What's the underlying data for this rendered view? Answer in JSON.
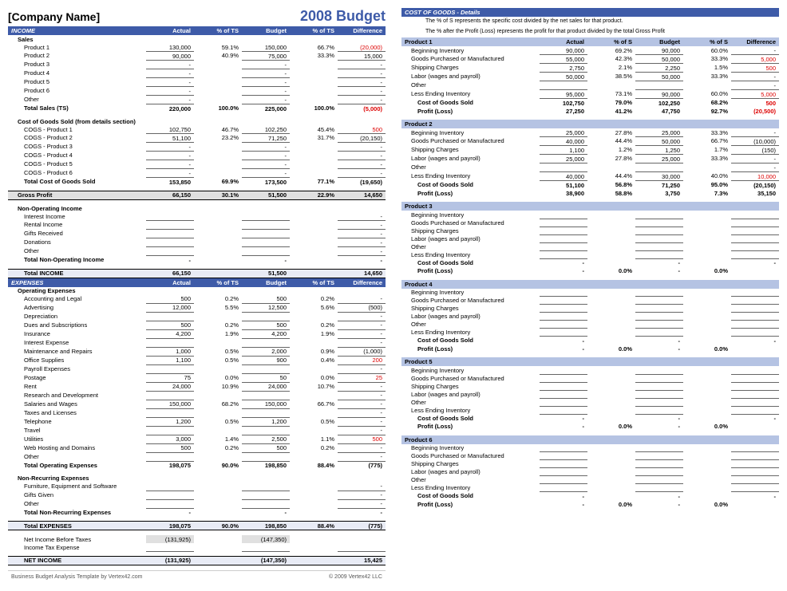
{
  "header": {
    "company": "[Company Name]",
    "title": "2008 Budget"
  },
  "columns": {
    "actual": "Actual",
    "pct": "% of TS",
    "budget": "Budget",
    "pct2": "% of TS",
    "diff": "Difference"
  },
  "income": {
    "title": "INCOME",
    "sales_label": "Sales",
    "sales": [
      {
        "lbl": "Product 1",
        "a": "130,000",
        "ap": "59.1%",
        "b": "150,000",
        "bp": "66.7%",
        "d": "(20,000)",
        "neg": true
      },
      {
        "lbl": "Product 2",
        "a": "90,000",
        "ap": "40.9%",
        "b": "75,000",
        "bp": "33.3%",
        "d": "15,000"
      },
      {
        "lbl": "Product 3",
        "a": "-",
        "ap": "",
        "b": "-",
        "bp": "",
        "d": "-"
      },
      {
        "lbl": "Product 4",
        "a": "-",
        "ap": "",
        "b": "-",
        "bp": "",
        "d": "-"
      },
      {
        "lbl": "Product 5",
        "a": "-",
        "ap": "",
        "b": "-",
        "bp": "",
        "d": "-"
      },
      {
        "lbl": "Product 6",
        "a": "-",
        "ap": "",
        "b": "-",
        "bp": "",
        "d": "-"
      },
      {
        "lbl": "Other",
        "a": "-",
        "ap": "",
        "b": "-",
        "bp": "",
        "d": "-"
      }
    ],
    "total_sales": {
      "lbl": "Total Sales (TS)",
      "a": "220,000",
      "ap": "100.0%",
      "b": "225,000",
      "bp": "100.0%",
      "d": "(5,000)",
      "neg": true
    },
    "cogs_label": "Cost of Goods Sold (from details section)",
    "cogs": [
      {
        "lbl": "COGS - Product 1",
        "a": "102,750",
        "ap": "46.7%",
        "b": "102,250",
        "bp": "45.4%",
        "d": "500",
        "neg": true
      },
      {
        "lbl": "COGS - Product 2",
        "a": "51,100",
        "ap": "23.2%",
        "b": "71,250",
        "bp": "31.7%",
        "d": "(20,150)"
      },
      {
        "lbl": "COGS - Product 3",
        "a": "-",
        "ap": "",
        "b": "-",
        "bp": "",
        "d": "-"
      },
      {
        "lbl": "COGS - Product 4",
        "a": "-",
        "ap": "",
        "b": "-",
        "bp": "",
        "d": "-"
      },
      {
        "lbl": "COGS - Product 5",
        "a": "-",
        "ap": "",
        "b": "-",
        "bp": "",
        "d": "-"
      },
      {
        "lbl": "COGS - Product 6",
        "a": "-",
        "ap": "",
        "b": "-",
        "bp": "",
        "d": "-"
      }
    ],
    "total_cogs": {
      "lbl": "Total Cost of Goods Sold",
      "a": "153,850",
      "ap": "69.9%",
      "b": "173,500",
      "bp": "77.1%",
      "d": "(19,650)"
    },
    "gross": {
      "lbl": "Gross Profit",
      "a": "66,150",
      "ap": "30.1%",
      "b": "51,500",
      "bp": "22.9%",
      "d": "14,650"
    },
    "nonop_label": "Non-Operating Income",
    "nonop": [
      {
        "lbl": "Interest Income",
        "a": "",
        "ap": "",
        "b": "",
        "bp": "",
        "d": "-"
      },
      {
        "lbl": "Rental Income",
        "a": "",
        "ap": "",
        "b": "",
        "bp": "",
        "d": "-"
      },
      {
        "lbl": "Gifts Received",
        "a": "",
        "ap": "",
        "b": "",
        "bp": "",
        "d": "-"
      },
      {
        "lbl": "Donations",
        "a": "",
        "ap": "",
        "b": "",
        "bp": "",
        "d": "-"
      },
      {
        "lbl": "Other",
        "a": "",
        "ap": "",
        "b": "",
        "bp": "",
        "d": "-"
      }
    ],
    "total_nonop": {
      "lbl": "Total Non-Operating Income",
      "a": "-",
      "ap": "",
      "b": "-",
      "bp": "",
      "d": "-"
    },
    "total": {
      "lbl": "Total INCOME",
      "a": "66,150",
      "ap": "",
      "b": "51,500",
      "bp": "",
      "d": "14,650"
    }
  },
  "expenses": {
    "title": "EXPENSES",
    "op_label": "Operating Expenses",
    "ops": [
      {
        "lbl": "Accounting and Legal",
        "a": "500",
        "ap": "0.2%",
        "b": "500",
        "bp": "0.2%",
        "d": "-"
      },
      {
        "lbl": "Advertising",
        "a": "12,000",
        "ap": "5.5%",
        "b": "12,500",
        "bp": "5.6%",
        "d": "(500)"
      },
      {
        "lbl": "Depreciation",
        "a": "",
        "ap": "",
        "b": "",
        "bp": "",
        "d": "-"
      },
      {
        "lbl": "Dues and Subscriptions",
        "a": "500",
        "ap": "0.2%",
        "b": "500",
        "bp": "0.2%",
        "d": "-"
      },
      {
        "lbl": "Insurance",
        "a": "4,200",
        "ap": "1.9%",
        "b": "4,200",
        "bp": "1.9%",
        "d": "-"
      },
      {
        "lbl": "Interest Expense",
        "a": "",
        "ap": "",
        "b": "",
        "bp": "",
        "d": "-"
      },
      {
        "lbl": "Maintenance and Repairs",
        "a": "1,000",
        "ap": "0.5%",
        "b": "2,000",
        "bp": "0.9%",
        "d": "(1,000)"
      },
      {
        "lbl": "Office Supplies",
        "a": "1,100",
        "ap": "0.5%",
        "b": "900",
        "bp": "0.4%",
        "d": "200",
        "neg": true
      },
      {
        "lbl": "Payroll Expenses",
        "a": "",
        "ap": "",
        "b": "",
        "bp": "",
        "d": "-"
      },
      {
        "lbl": "Postage",
        "a": "75",
        "ap": "0.0%",
        "b": "50",
        "bp": "0.0%",
        "d": "25",
        "neg": true
      },
      {
        "lbl": "Rent",
        "a": "24,000",
        "ap": "10.9%",
        "b": "24,000",
        "bp": "10.7%",
        "d": "-"
      },
      {
        "lbl": "Research and Development",
        "a": "",
        "ap": "",
        "b": "",
        "bp": "",
        "d": "-"
      },
      {
        "lbl": "Salaries and Wages",
        "a": "150,000",
        "ap": "68.2%",
        "b": "150,000",
        "bp": "66.7%",
        "d": "-"
      },
      {
        "lbl": "Taxes and Licenses",
        "a": "",
        "ap": "",
        "b": "",
        "bp": "",
        "d": "-"
      },
      {
        "lbl": "Telephone",
        "a": "1,200",
        "ap": "0.5%",
        "b": "1,200",
        "bp": "0.5%",
        "d": "-"
      },
      {
        "lbl": "Travel",
        "a": "",
        "ap": "",
        "b": "",
        "bp": "",
        "d": "-"
      },
      {
        "lbl": "Utilities",
        "a": "3,000",
        "ap": "1.4%",
        "b": "2,500",
        "bp": "1.1%",
        "d": "500",
        "neg": true
      },
      {
        "lbl": "Web Hosting and Domains",
        "a": "500",
        "ap": "0.2%",
        "b": "500",
        "bp": "0.2%",
        "d": "-"
      },
      {
        "lbl": "Other",
        "a": "",
        "ap": "",
        "b": "",
        "bp": "",
        "d": "-"
      }
    ],
    "total_ops": {
      "lbl": "Total Operating Expenses",
      "a": "198,075",
      "ap": "90.0%",
      "b": "198,850",
      "bp": "88.4%",
      "d": "(775)"
    },
    "nonrec_label": "Non-Recurring Expenses",
    "nonrec": [
      {
        "lbl": "Furniture, Equipment and Software",
        "a": "",
        "ap": "",
        "b": "",
        "bp": "",
        "d": "-"
      },
      {
        "lbl": "Gifts Given",
        "a": "",
        "ap": "",
        "b": "",
        "bp": "",
        "d": "-"
      },
      {
        "lbl": "Other",
        "a": "",
        "ap": "",
        "b": "",
        "bp": "",
        "d": "-"
      }
    ],
    "total_nonrec": {
      "lbl": "Total Non-Recurring Expenses",
      "a": "-",
      "ap": "",
      "b": "-",
      "bp": "",
      "d": "-"
    },
    "total": {
      "lbl": "Total EXPENSES",
      "a": "198,075",
      "ap": "90.0%",
      "b": "198,850",
      "bp": "88.4%",
      "d": "(775)"
    }
  },
  "net": {
    "before_tax": {
      "lbl": "Net Income Before Taxes",
      "a": "(131,925)",
      "b": "(147,350)",
      "d": ""
    },
    "tax": {
      "lbl": "Income Tax Expense",
      "a": "",
      "b": "",
      "d": ""
    },
    "net": {
      "lbl": "NET INCOME",
      "a": "(131,925)",
      "b": "(147,350)",
      "d": "15,425"
    }
  },
  "footer": {
    "left": "Business Budget Analysis Template by Vertex42.com",
    "right": "© 2009 Vertex42 LLC"
  },
  "cog": {
    "title": "COST OF GOODS - Details",
    "note1": "The % of S represents the specific cost divided by the net sales for that product.",
    "note2": "The % after the Profit (Loss) represents the profit for that product divided by the total Gross Profit",
    "cols": {
      "actual": "Actual",
      "pct": "% of S",
      "budget": "Budget",
      "pct2": "% of S",
      "diff": "Difference"
    },
    "products": [
      {
        "name": "Product 1",
        "rows": [
          {
            "lbl": "Beginning Inventory",
            "a": "90,000",
            "ap": "69.2%",
            "b": "90,000",
            "bp": "60.0%",
            "d": "-"
          },
          {
            "lbl": "Goods Purchased or Manufactured",
            "a": "55,000",
            "ap": "42.3%",
            "b": "50,000",
            "bp": "33.3%",
            "d": "5,000",
            "neg": true
          },
          {
            "lbl": "Shipping Charges",
            "a": "2,750",
            "ap": "2.1%",
            "b": "2,250",
            "bp": "1.5%",
            "d": "500",
            "neg": true
          },
          {
            "lbl": "Labor (wages and payroll)",
            "a": "50,000",
            "ap": "38.5%",
            "b": "50,000",
            "bp": "33.3%",
            "d": "-"
          },
          {
            "lbl": "Other",
            "a": "",
            "ap": "",
            "b": "",
            "bp": "",
            "d": "-"
          },
          {
            "lbl": "Less Ending Inventory",
            "a": "95,000",
            "ap": "73.1%",
            "b": "90,000",
            "bp": "60.0%",
            "d": "5,000",
            "neg": true
          }
        ],
        "cogs": {
          "lbl": "Cost of Goods Sold",
          "a": "102,750",
          "ap": "79.0%",
          "b": "102,250",
          "bp": "68.2%",
          "d": "500",
          "neg": true
        },
        "profit": {
          "lbl": "Profit (Loss)",
          "a": "27,250",
          "ap": "41.2%",
          "b": "47,750",
          "bp": "92.7%",
          "d": "(20,500)",
          "neg": true
        }
      },
      {
        "name": "Product 2",
        "rows": [
          {
            "lbl": "Beginning Inventory",
            "a": "25,000",
            "ap": "27.8%",
            "b": "25,000",
            "bp": "33.3%",
            "d": "-"
          },
          {
            "lbl": "Goods Purchased or Manufactured",
            "a": "40,000",
            "ap": "44.4%",
            "b": "50,000",
            "bp": "66.7%",
            "d": "(10,000)"
          },
          {
            "lbl": "Shipping Charges",
            "a": "1,100",
            "ap": "1.2%",
            "b": "1,250",
            "bp": "1.7%",
            "d": "(150)"
          },
          {
            "lbl": "Labor (wages and payroll)",
            "a": "25,000",
            "ap": "27.8%",
            "b": "25,000",
            "bp": "33.3%",
            "d": "-"
          },
          {
            "lbl": "Other",
            "a": "",
            "ap": "",
            "b": "",
            "bp": "",
            "d": "-"
          },
          {
            "lbl": "Less Ending Inventory",
            "a": "40,000",
            "ap": "44.4%",
            "b": "30,000",
            "bp": "40.0%",
            "d": "10,000",
            "neg": true
          }
        ],
        "cogs": {
          "lbl": "Cost of Goods Sold",
          "a": "51,100",
          "ap": "56.8%",
          "b": "71,250",
          "bp": "95.0%",
          "d": "(20,150)"
        },
        "profit": {
          "lbl": "Profit (Loss)",
          "a": "38,900",
          "ap": "58.8%",
          "b": "3,750",
          "bp": "7.3%",
          "d": "35,150"
        }
      },
      {
        "name": "Product 3",
        "rows": [
          {
            "lbl": "Beginning Inventory"
          },
          {
            "lbl": "Goods Purchased or Manufactured"
          },
          {
            "lbl": "Shipping Charges"
          },
          {
            "lbl": "Labor (wages and payroll)"
          },
          {
            "lbl": "Other"
          },
          {
            "lbl": "Less Ending Inventory"
          }
        ],
        "cogs": {
          "lbl": "Cost of Goods Sold",
          "a": "-",
          "b": "-",
          "d": "-"
        },
        "profit": {
          "lbl": "Profit (Loss)",
          "a": "-",
          "ap": "0.0%",
          "b": "-",
          "bp": "0.0%",
          "d": ""
        }
      },
      {
        "name": "Product 4",
        "rows": [
          {
            "lbl": "Beginning Inventory"
          },
          {
            "lbl": "Goods Purchased or Manufactured"
          },
          {
            "lbl": "Shipping Charges"
          },
          {
            "lbl": "Labor (wages and payroll)"
          },
          {
            "lbl": "Other"
          },
          {
            "lbl": "Less Ending Inventory"
          }
        ],
        "cogs": {
          "lbl": "Cost of Goods Sold",
          "a": "-",
          "b": "-",
          "d": "-"
        },
        "profit": {
          "lbl": "Profit (Loss)",
          "a": "-",
          "ap": "0.0%",
          "b": "-",
          "bp": "0.0%",
          "d": ""
        }
      },
      {
        "name": "Product 5",
        "rows": [
          {
            "lbl": "Beginning Inventory"
          },
          {
            "lbl": "Goods Purchased or Manufactured"
          },
          {
            "lbl": "Shipping Charges"
          },
          {
            "lbl": "Labor (wages and payroll)"
          },
          {
            "lbl": "Other"
          },
          {
            "lbl": "Less Ending Inventory"
          }
        ],
        "cogs": {
          "lbl": "Cost of Goods Sold",
          "a": "-",
          "b": "-",
          "d": "-"
        },
        "profit": {
          "lbl": "Profit (Loss)",
          "a": "-",
          "ap": "0.0%",
          "b": "-",
          "bp": "0.0%",
          "d": ""
        }
      },
      {
        "name": "Product 6",
        "rows": [
          {
            "lbl": "Beginning Inventory"
          },
          {
            "lbl": "Goods Purchased or Manufactured"
          },
          {
            "lbl": "Shipping Charges"
          },
          {
            "lbl": "Labor (wages and payroll)"
          },
          {
            "lbl": "Other"
          },
          {
            "lbl": "Less Ending Inventory"
          }
        ],
        "cogs": {
          "lbl": "Cost of Goods Sold",
          "a": "-",
          "b": "-",
          "d": "-"
        },
        "profit": {
          "lbl": "Profit (Loss)",
          "a": "-",
          "ap": "0.0%",
          "b": "-",
          "bp": "0.0%",
          "d": ""
        }
      }
    ]
  }
}
